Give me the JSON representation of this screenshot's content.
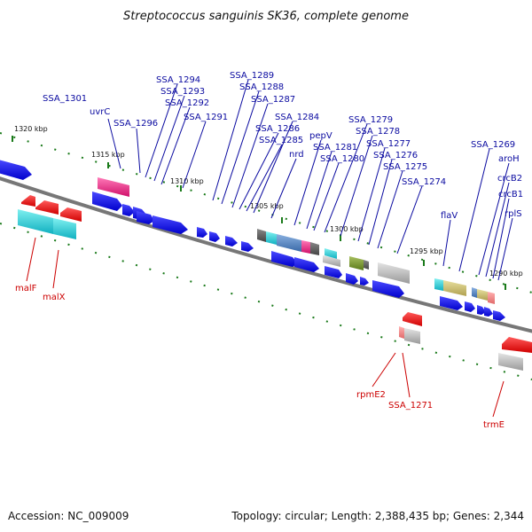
{
  "title": "Streptococcus sanguinis SK36, complete genome",
  "footer": {
    "accession": "Accession: NC_009009",
    "summary": "Topology: circular; Length: 2,388,435 bp; Genes: 2,344"
  },
  "colors": {
    "forward_label": "#0a0aa0",
    "reverse_label": "#cc0000",
    "backbone": "#777777",
    "tick": "#1a7a1a"
  },
  "ticks": [
    "1320 kbp",
    "1315 kbp",
    "1310 kbp",
    "1305 kbp",
    "1300 kbp",
    "1295 kbp",
    "1290 kbp"
  ],
  "forward_labels": [
    "SSA_1301",
    "uvrC",
    "SSA_1296",
    "SSA_1294",
    "SSA_1293",
    "SSA_1292",
    "SSA_1291",
    "SSA_1289",
    "SSA_1288",
    "SSA_1287",
    "SSA_1284",
    "SSA_1286",
    "SSA_1285",
    "nrd",
    "pepV",
    "SSA_1281",
    "SSA_1280",
    "SSA_1279",
    "SSA_1278",
    "SSA_1277",
    "SSA_1276",
    "SSA_1275",
    "SSA_1274",
    "flaV",
    "SSA_1269",
    "aroH",
    "crcB2",
    "crcB1",
    "rplS"
  ],
  "reverse_labels": [
    "malF",
    "malX",
    "rpmE2",
    "SSA_1271",
    "trmE"
  ]
}
